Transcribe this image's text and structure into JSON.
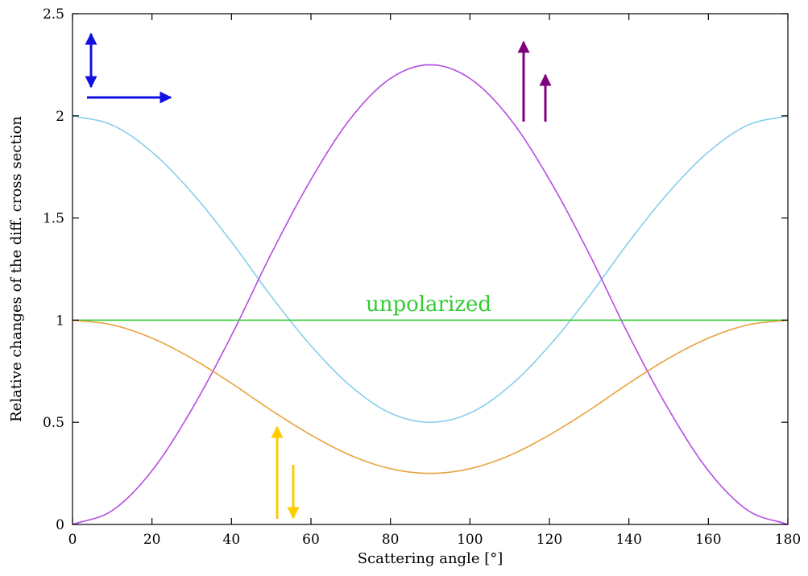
{
  "chart_data": {
    "type": "line",
    "title": "",
    "xlabel": "Scattering angle [°]",
    "ylabel": "Relative changes of the diff. cross section",
    "xlim": [
      0,
      180
    ],
    "ylim": [
      0,
      2.5
    ],
    "x_ticks": [
      "0",
      "20",
      "40",
      "60",
      "80",
      "100",
      "120",
      "140",
      "160",
      "180"
    ],
    "y_ticks": [
      "0",
      "0.5",
      "1",
      "1.5",
      "2",
      "2.5"
    ],
    "x_tick_values": [
      0,
      20,
      40,
      60,
      80,
      100,
      120,
      140,
      160,
      180
    ],
    "y_tick_values": [
      0,
      0.5,
      1,
      1.5,
      2,
      2.5
    ],
    "grid": false,
    "x": [
      0,
      10,
      20,
      30,
      40,
      50,
      60,
      70,
      80,
      90,
      100,
      110,
      120,
      130,
      140,
      150,
      160,
      170,
      180
    ],
    "series": [
      {
        "color": "#87ceeb",
        "values": [
          2.0,
          1.955,
          1.823,
          1.625,
          1.383,
          1.117,
          0.875,
          0.677,
          0.545,
          0.5,
          0.545,
          0.677,
          0.875,
          1.117,
          1.383,
          1.625,
          1.823,
          1.955,
          2.0
        ]
      },
      {
        "color": "#b44ee0",
        "values": [
          0.0,
          0.068,
          0.263,
          0.563,
          0.925,
          1.325,
          1.688,
          1.988,
          2.183,
          2.25,
          2.183,
          1.988,
          1.688,
          1.325,
          0.925,
          0.563,
          0.263,
          0.068,
          0.0
        ]
      },
      {
        "name": "unpolarized",
        "color": "#33cc33",
        "values": [
          1,
          1,
          1,
          1,
          1,
          1,
          1,
          1,
          1,
          1,
          1,
          1,
          1,
          1,
          1,
          1,
          1,
          1,
          1
        ]
      },
      {
        "color": "#e8a33d",
        "values": [
          1.0,
          0.977,
          0.912,
          0.813,
          0.691,
          0.559,
          0.438,
          0.338,
          0.273,
          0.25,
          0.273,
          0.338,
          0.438,
          0.559,
          0.691,
          0.813,
          0.912,
          0.977,
          1.0
        ]
      }
    ],
    "annotations": {
      "unpolarized_label": "unpolarized",
      "unpolarized_color": "#33cc33",
      "arrow_colors": {
        "perp_parallel": "#1010e0",
        "parallel_parallel": "#800080",
        "antiparallel": "#ffcc00"
      }
    }
  }
}
